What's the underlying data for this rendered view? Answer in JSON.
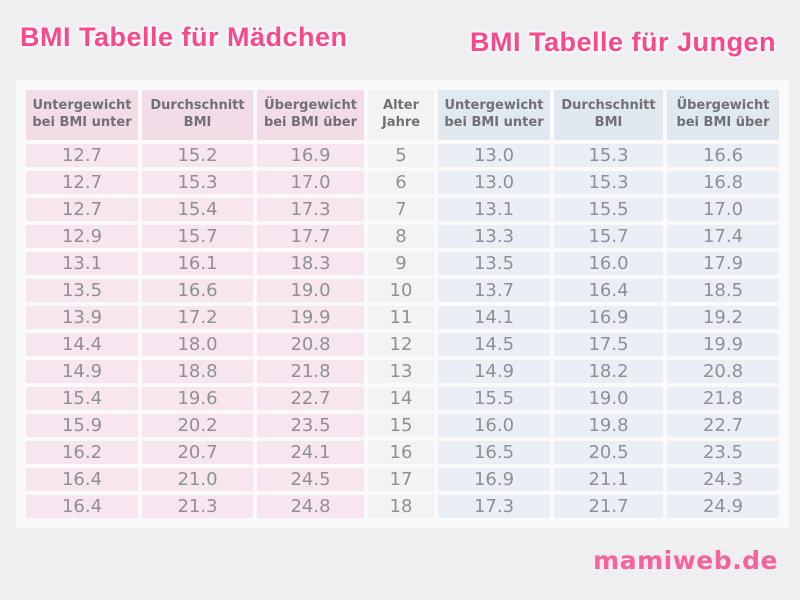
{
  "titles": {
    "girls": "BMI Tabelle für Mädchen",
    "boys": "BMI Tabelle für Jungen"
  },
  "table": {
    "headers": {
      "girls_under": "Untergewicht\nbei BMI unter",
      "girls_avg": "Durchschnitt\nBMI",
      "girls_over": "Übergewicht\nbei BMI über",
      "age": "Alter\nJahre",
      "boys_under": "Untergewicht\nbei BMI unter",
      "boys_avg": "Durchschnitt\nBMI",
      "boys_over": "Übergewicht\nbei BMI über"
    },
    "rows": [
      {
        "age": "5",
        "girls": [
          "12.7",
          "15.2",
          "16.9"
        ],
        "boys": [
          "13.0",
          "15.3",
          "16.6"
        ]
      },
      {
        "age": "6",
        "girls": [
          "12.7",
          "15.3",
          "17.0"
        ],
        "boys": [
          "13.0",
          "15.3",
          "16.8"
        ]
      },
      {
        "age": "7",
        "girls": [
          "12.7",
          "15.4",
          "17.3"
        ],
        "boys": [
          "13.1",
          "15.5",
          "17.0"
        ]
      },
      {
        "age": "8",
        "girls": [
          "12.9",
          "15.7",
          "17.7"
        ],
        "boys": [
          "13.3",
          "15.7",
          "17.4"
        ]
      },
      {
        "age": "9",
        "girls": [
          "13.1",
          "16.1",
          "18.3"
        ],
        "boys": [
          "13.5",
          "16.0",
          "17.9"
        ]
      },
      {
        "age": "10",
        "girls": [
          "13.5",
          "16.6",
          "19.0"
        ],
        "boys": [
          "13.7",
          "16.4",
          "18.5"
        ]
      },
      {
        "age": "11",
        "girls": [
          "13.9",
          "17.2",
          "19.9"
        ],
        "boys": [
          "14.1",
          "16.9",
          "19.2"
        ]
      },
      {
        "age": "12",
        "girls": [
          "14.4",
          "18.0",
          "20.8"
        ],
        "boys": [
          "14.5",
          "17.5",
          "19.9"
        ]
      },
      {
        "age": "13",
        "girls": [
          "14.9",
          "18.8",
          "21.8"
        ],
        "boys": [
          "14.9",
          "18.2",
          "20.8"
        ]
      },
      {
        "age": "14",
        "girls": [
          "15.4",
          "19.6",
          "22.7"
        ],
        "boys": [
          "15.5",
          "19.0",
          "21.8"
        ]
      },
      {
        "age": "15",
        "girls": [
          "15.9",
          "20.2",
          "23.5"
        ],
        "boys": [
          "16.0",
          "19.8",
          "22.7"
        ]
      },
      {
        "age": "16",
        "girls": [
          "16.2",
          "20.7",
          "24.1"
        ],
        "boys": [
          "16.5",
          "20.5",
          "23.5"
        ]
      },
      {
        "age": "17",
        "girls": [
          "16.4",
          "21.0",
          "24.5"
        ],
        "boys": [
          "16.9",
          "21.1",
          "24.3"
        ]
      },
      {
        "age": "18",
        "girls": [
          "16.4",
          "21.3",
          "24.8"
        ],
        "boys": [
          "17.3",
          "21.7",
          "24.9"
        ]
      }
    ]
  },
  "footer": {
    "logo_text": "mamiweb.de"
  },
  "colors": {
    "title_pink": "#f7498c",
    "logo_pink": "#f7629a",
    "girls_header_bg": "#f2dce8",
    "girls_cell_bg": "#f7e6ef",
    "boys_header_bg": "#dfe9ef",
    "boys_cell_bg": "#e9eff4",
    "age_col_bg": "#f4f3f4",
    "header_text": "#707075",
    "cell_text": "#8f9095",
    "page_bg": "#efeef0",
    "table_bg": "#fbfafb"
  },
  "chart_data": {
    "type": "table",
    "title": "BMI Tabelle für Mädchen / BMI Tabelle für Jungen",
    "xlabel": "Alter Jahre",
    "categories": [
      5,
      6,
      7,
      8,
      9,
      10,
      11,
      12,
      13,
      14,
      15,
      16,
      17,
      18
    ],
    "series": [
      {
        "name": "Mädchen Untergewicht bei BMI unter",
        "values": [
          12.7,
          12.7,
          12.7,
          12.9,
          13.1,
          13.5,
          13.9,
          14.4,
          14.9,
          15.4,
          15.9,
          16.2,
          16.4,
          16.4
        ]
      },
      {
        "name": "Mädchen Durchschnitt BMI",
        "values": [
          15.2,
          15.3,
          15.4,
          15.7,
          16.1,
          16.6,
          17.2,
          18.0,
          18.8,
          19.6,
          20.2,
          20.7,
          21.0,
          21.3
        ]
      },
      {
        "name": "Mädchen Übergewicht bei BMI über",
        "values": [
          16.9,
          17.0,
          17.3,
          17.7,
          18.3,
          19.0,
          19.9,
          20.8,
          21.8,
          22.7,
          23.5,
          24.1,
          24.5,
          24.8
        ]
      },
      {
        "name": "Jungen Untergewicht bei BMI unter",
        "values": [
          13.0,
          13.0,
          13.1,
          13.3,
          13.5,
          13.7,
          14.1,
          14.5,
          14.9,
          15.5,
          16.0,
          16.5,
          16.9,
          17.3
        ]
      },
      {
        "name": "Jungen Durchschnitt BMI",
        "values": [
          15.3,
          15.3,
          15.5,
          15.7,
          16.0,
          16.4,
          16.9,
          17.5,
          18.2,
          19.0,
          19.8,
          20.5,
          21.1,
          21.7
        ]
      },
      {
        "name": "Jungen Übergewicht bei BMI über",
        "values": [
          16.6,
          16.8,
          17.0,
          17.4,
          17.9,
          18.5,
          19.2,
          19.9,
          20.8,
          21.8,
          22.7,
          23.5,
          24.3,
          24.9
        ]
      }
    ]
  }
}
